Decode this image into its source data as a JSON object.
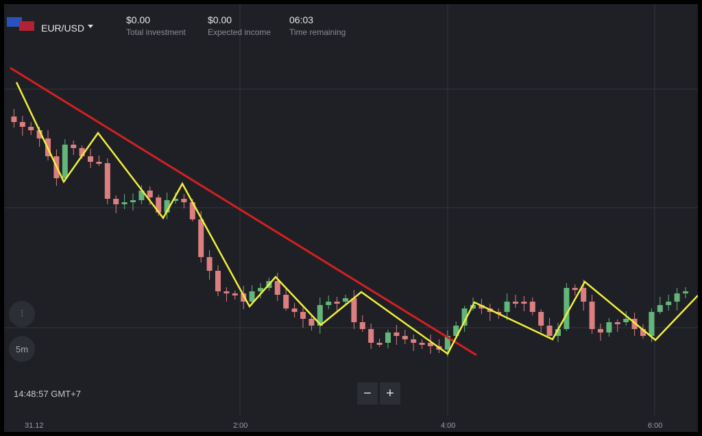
{
  "header": {
    "pair": "EUR/USD",
    "stats": [
      {
        "value": "$0.00",
        "label": "Total investment"
      },
      {
        "value": "$0.00",
        "label": "Expected income"
      },
      {
        "value": "06:03",
        "label": "Time remaining"
      }
    ]
  },
  "chart": {
    "timeframe": "5m",
    "clock": "14:48:57 GMT+7",
    "time_labels": [
      "31.12",
      "2:00",
      "4:00",
      "6:00"
    ]
  },
  "zoom": {
    "minus": "−",
    "plus": "+"
  }
}
